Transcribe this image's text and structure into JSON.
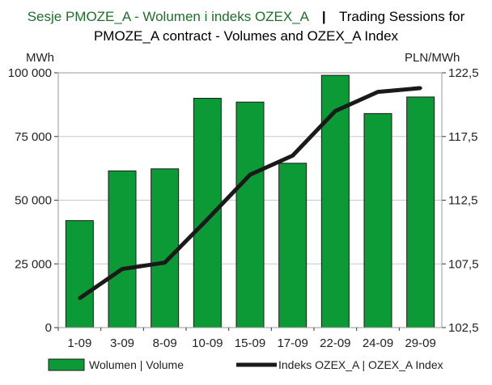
{
  "title": {
    "part_pl": "Sesje PMOZE_A - Wolumen i indeks OZEX_A",
    "separator": "|",
    "part_en_line1": "Trading Sessions for",
    "part_en_line2": "PMOZE_A contract - Volumes and OZEX_A Index"
  },
  "colors": {
    "title_pl": "#1f6f2a",
    "bar_fill": "#0c9a36",
    "bar_stroke": "#1a1a1a",
    "line": "#1a1a1a",
    "grid": "#c8c8c8",
    "plot_border": "#9a9a9a"
  },
  "chart_data": {
    "type": "bar+line",
    "categories": [
      "1-09",
      "3-09",
      "8-09",
      "10-09",
      "15-09",
      "17-09",
      "22-09",
      "24-09",
      "29-09"
    ],
    "series": [
      {
        "name": "Wolumen  |  Volume",
        "type": "bar",
        "axis": "left",
        "values": [
          42000,
          61500,
          62300,
          90000,
          88500,
          64500,
          99000,
          84000,
          90500
        ]
      },
      {
        "name": "Indeks OZEX_A  |  OZEX_A Index",
        "type": "line",
        "axis": "right",
        "values": [
          104.8,
          107.1,
          107.6,
          111.0,
          114.5,
          116.0,
          119.5,
          121.0,
          121.3
        ]
      }
    ],
    "y_left": {
      "label": "MWh",
      "range": [
        0,
        100000
      ],
      "ticks": [
        0,
        25000,
        50000,
        75000,
        100000
      ],
      "tick_labels": [
        "0",
        "25 000",
        "50 000",
        "75 000",
        "100 000"
      ]
    },
    "y_right": {
      "label": "PLN/MWh",
      "range": [
        102.5,
        122.5
      ],
      "ticks": [
        102.5,
        107.5,
        112.5,
        117.5,
        122.5
      ],
      "tick_labels": [
        "102,5",
        "107,5",
        "112,5",
        "117,5",
        "122,5"
      ]
    },
    "grid": true,
    "legend_position": "bottom"
  }
}
